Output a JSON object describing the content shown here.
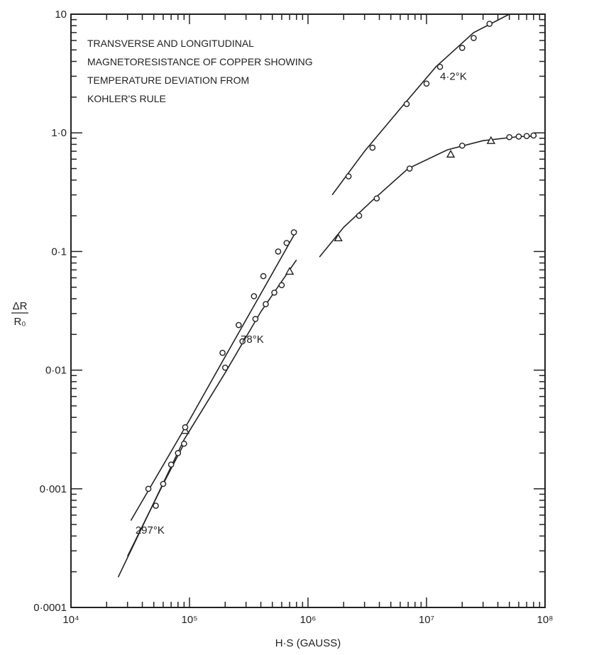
{
  "chart_data": {
    "type": "scatter",
    "log_x": true,
    "log_y": true,
    "xlim": [
      10000,
      100000000
    ],
    "ylim": [
      0.0001,
      10
    ],
    "xlabel": "H·S (GAUSS)",
    "ylabel_num": "ΔR",
    "ylabel_den": "R₀",
    "x_ticks": [
      {
        "value": 10000,
        "label": "10⁴"
      },
      {
        "value": 100000,
        "label": "10⁵"
      },
      {
        "value": 1000000,
        "label": "10⁶"
      },
      {
        "value": 10000000,
        "label": "10⁷"
      },
      {
        "value": 100000000,
        "label": "10⁸"
      }
    ],
    "y_ticks": [
      {
        "value": 0.0001,
        "label": "0·0001"
      },
      {
        "value": 0.001,
        "label": "0·001"
      },
      {
        "value": 0.01,
        "label": "0·01"
      },
      {
        "value": 0.1,
        "label": "0·1"
      },
      {
        "value": 1,
        "label": "1·0"
      },
      {
        "value": 10,
        "label": "10"
      }
    ],
    "annotation_lines": [
      "TRANSVERSE AND LONGITUDINAL",
      "MAGNETORESISTANCE OF COPPER SHOWING",
      "TEMPERATURE DEVIATION FROM",
      "KOHLER'S RULE"
    ],
    "series": [
      {
        "label": "297°K",
        "label_at": [
          35000,
          0.00042
        ],
        "line": [
          [
            30000,
            0.00027
          ],
          [
            60000,
            0.0011
          ],
          [
            90000,
            0.0024
          ]
        ],
        "transverse": [
          [
            52000,
            0.00072
          ],
          [
            60000,
            0.0011
          ],
          [
            70000,
            0.0016
          ],
          [
            80000,
            0.002
          ],
          [
            90000,
            0.0024
          ]
        ],
        "longitudinal": [
          [
            92000,
            0.0031
          ]
        ]
      },
      {
        "label": "78°K",
        "label_at": [
          270000,
          0.017
        ],
        "line": [
          [
            25000,
            0.00018
          ],
          [
            90000,
            0.0026
          ],
          [
            200000,
            0.0095
          ],
          [
            400000,
            0.031
          ],
          [
            800000,
            0.085
          ]
        ],
        "transverse": [
          [
            200000,
            0.0105
          ],
          [
            280000,
            0.0175
          ],
          [
            360000,
            0.027
          ],
          [
            440000,
            0.036
          ],
          [
            520000,
            0.045
          ],
          [
            600000,
            0.052
          ]
        ],
        "longitudinal": [
          [
            700000,
            0.068
          ]
        ]
      },
      {
        "label": "",
        "line": [
          [
            32000,
            0.00054
          ],
          [
            100000,
            0.0038
          ],
          [
            200000,
            0.013
          ],
          [
            400000,
            0.044
          ],
          [
            800000,
            0.15
          ]
        ],
        "transverse": [
          [
            45000,
            0.001
          ],
          [
            92000,
            0.0033
          ],
          [
            190000,
            0.014
          ],
          [
            260000,
            0.024
          ],
          [
            350000,
            0.042
          ],
          [
            420000,
            0.062
          ],
          [
            560000,
            0.1
          ],
          [
            660000,
            0.118
          ],
          [
            760000,
            0.145
          ]
        ],
        "longitudinal": []
      },
      {
        "label": "4·2°K",
        "label_at": [
          13000000,
          2.8
        ],
        "line": [
          [
            1600000,
            0.3
          ],
          [
            3000000,
            0.7
          ],
          [
            6000000,
            1.6
          ],
          [
            12000000,
            3.6
          ],
          [
            25000000,
            7.0
          ],
          [
            50000000,
            10
          ]
        ],
        "transverse": [
          [
            2200000,
            0.43
          ],
          [
            3500000,
            0.75
          ],
          [
            6800000,
            1.75
          ],
          [
            10000000,
            2.6
          ],
          [
            13000000,
            3.6
          ],
          [
            20000000,
            5.2
          ],
          [
            25000000,
            6.3
          ],
          [
            34000000,
            8.3
          ]
        ],
        "longitudinal": []
      },
      {
        "label": "",
        "line": [
          [
            1250000,
            0.09
          ],
          [
            2000000,
            0.16
          ],
          [
            3500000,
            0.27
          ],
          [
            7000000,
            0.5
          ],
          [
            15000000,
            0.72
          ],
          [
            30000000,
            0.86
          ],
          [
            60000000,
            0.93
          ],
          [
            85000000,
            0.94
          ]
        ],
        "transverse": [
          [
            2700000,
            0.2
          ],
          [
            3800000,
            0.28
          ],
          [
            7200000,
            0.5
          ],
          [
            20000000,
            0.78
          ],
          [
            50000000,
            0.92
          ],
          [
            60000000,
            0.93
          ],
          [
            70000000,
            0.94
          ],
          [
            80000000,
            0.95
          ]
        ],
        "longitudinal": [
          [
            1800000,
            0.13
          ],
          [
            16000000,
            0.66
          ],
          [
            35000000,
            0.86
          ]
        ]
      }
    ]
  }
}
